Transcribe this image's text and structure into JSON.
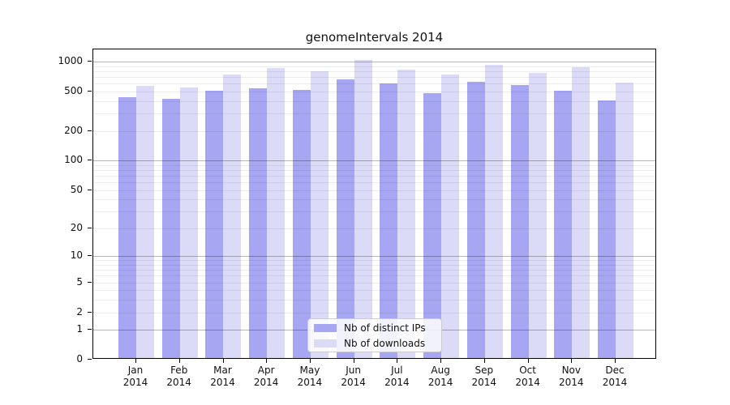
{
  "chart_data": {
    "type": "bar",
    "title": "genomeIntervals 2014",
    "categories": [
      "Jan",
      "Feb",
      "Mar",
      "Apr",
      "May",
      "Jun",
      "Jul",
      "Aug",
      "Sep",
      "Oct",
      "Nov",
      "Dec"
    ],
    "xtick_year": "2014",
    "series": [
      {
        "name": "Nb of distinct IPs",
        "color": "#a6a6f2",
        "values": [
          420,
          405,
          490,
          520,
          505,
          635,
          580,
          465,
          605,
          565,
          495,
          390
        ]
      },
      {
        "name": "Nb of downloads",
        "color": "#dbdbf7",
        "values": [
          545,
          530,
          710,
          830,
          765,
          1000,
          805,
          710,
          900,
          750,
          845,
          590
        ]
      }
    ],
    "yscale": "log1p",
    "ylim": [
      0,
      1330
    ],
    "yticks": [
      0,
      1,
      2,
      5,
      10,
      20,
      50,
      100,
      200,
      500,
      1000
    ],
    "gridlines": {
      "major": [
        1,
        10,
        100,
        1000
      ],
      "minor": [
        2,
        3,
        4,
        5,
        6,
        7,
        8,
        9,
        20,
        30,
        40,
        50,
        60,
        70,
        80,
        90,
        200,
        300,
        400,
        500,
        600,
        700,
        800,
        900
      ]
    },
    "grid": true,
    "legend_position": "bottom-center"
  }
}
